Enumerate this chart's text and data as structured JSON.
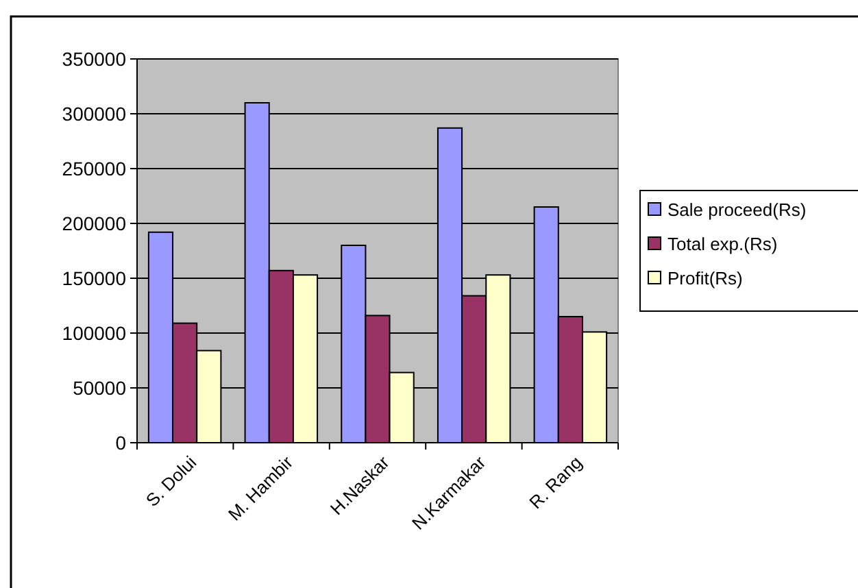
{
  "chart_data": {
    "type": "bar",
    "categories": [
      "S. Dolui",
      "M. Hambir",
      "H.Naskar",
      "N.Karmakar",
      "R. Rang"
    ],
    "series": [
      {
        "name": "Sale proceed(Rs)",
        "color": "#9999ff",
        "values": [
          192000,
          310000,
          180000,
          287000,
          215000
        ]
      },
      {
        "name": "Total exp.(Rs)",
        "color": "#993366",
        "values": [
          109000,
          157000,
          116000,
          134000,
          115000
        ]
      },
      {
        "name": "Profit(Rs)",
        "color": "#ffffcc",
        "values": [
          84000,
          153000,
          64000,
          153000,
          101000
        ]
      }
    ],
    "ylim": [
      0,
      350000
    ],
    "yticks": [
      0,
      50000,
      100000,
      150000,
      200000,
      250000,
      300000,
      350000
    ],
    "grid": "y",
    "legend": "right"
  }
}
